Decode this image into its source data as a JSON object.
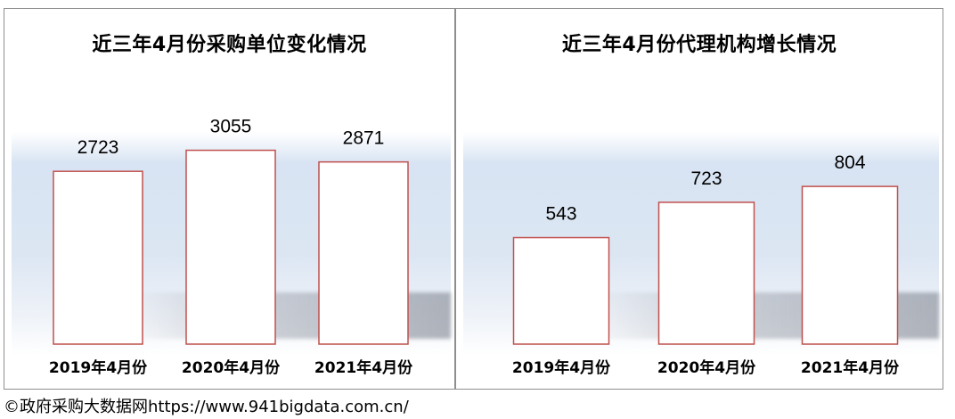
{
  "footer": {
    "text": "©政府采购大数据网https://www.941bigdata.com.cn/"
  },
  "chart_data": [
    {
      "type": "bar",
      "title": "近三年4月份采购单位变化情况",
      "categories": [
        "2019年4月份",
        "2020年4月份",
        "2021年4月份"
      ],
      "values": [
        2723,
        3055,
        2871
      ],
      "ylim": [
        0,
        3400
      ],
      "grid": false,
      "colors": {
        "bar_border": "#c0504d",
        "bar_fill": "#ffffff"
      }
    },
    {
      "type": "bar",
      "title": "近三年4月份代理机构增长情况",
      "categories": [
        "2019年4月份",
        "2020年4月份",
        "2021年4月份"
      ],
      "values": [
        543,
        723,
        804
      ],
      "ylim": [
        0,
        1100
      ],
      "grid": false,
      "colors": {
        "bar_border": "#c0504d",
        "bar_fill": "#ffffff"
      }
    }
  ]
}
